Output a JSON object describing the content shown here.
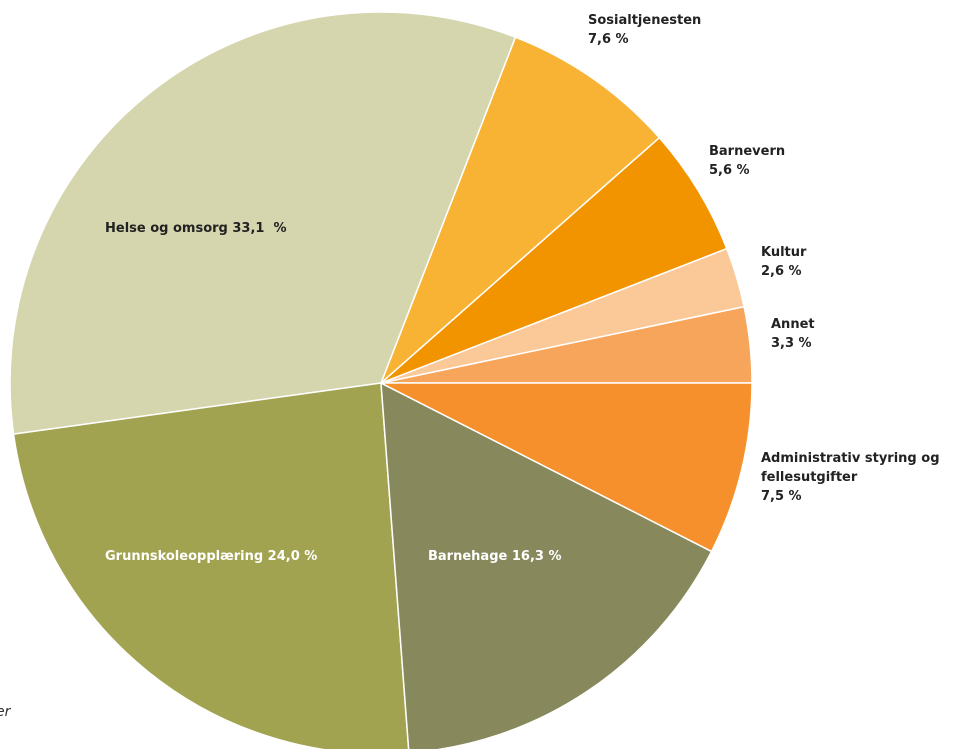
{
  "chart_data": {
    "type": "pie",
    "categories": [
      "Annet",
      "Kultur",
      "Barnevern",
      "Sosialtjenesten",
      "Helse og omsorg",
      "Grunnskoleopplæring",
      "Barnehage",
      "Administrativ styring og fellesutgifter"
    ],
    "values": [
      3.3,
      2.6,
      5.6,
      7.6,
      33.1,
      24.0,
      16.3,
      7.5
    ],
    "value_labels": [
      "3,3 %",
      "2,6 %",
      "5,6 %",
      "7,6 %",
      "33,1  %",
      "24,0 %",
      "16,3 %",
      "7,5 %"
    ],
    "colors": [
      "#f7a55a",
      "#fbc898",
      "#f29400",
      "#f8b334",
      "#d5d5ae",
      "#a2a351",
      "#87895d",
      "#f6902c"
    ],
    "note": "er"
  }
}
